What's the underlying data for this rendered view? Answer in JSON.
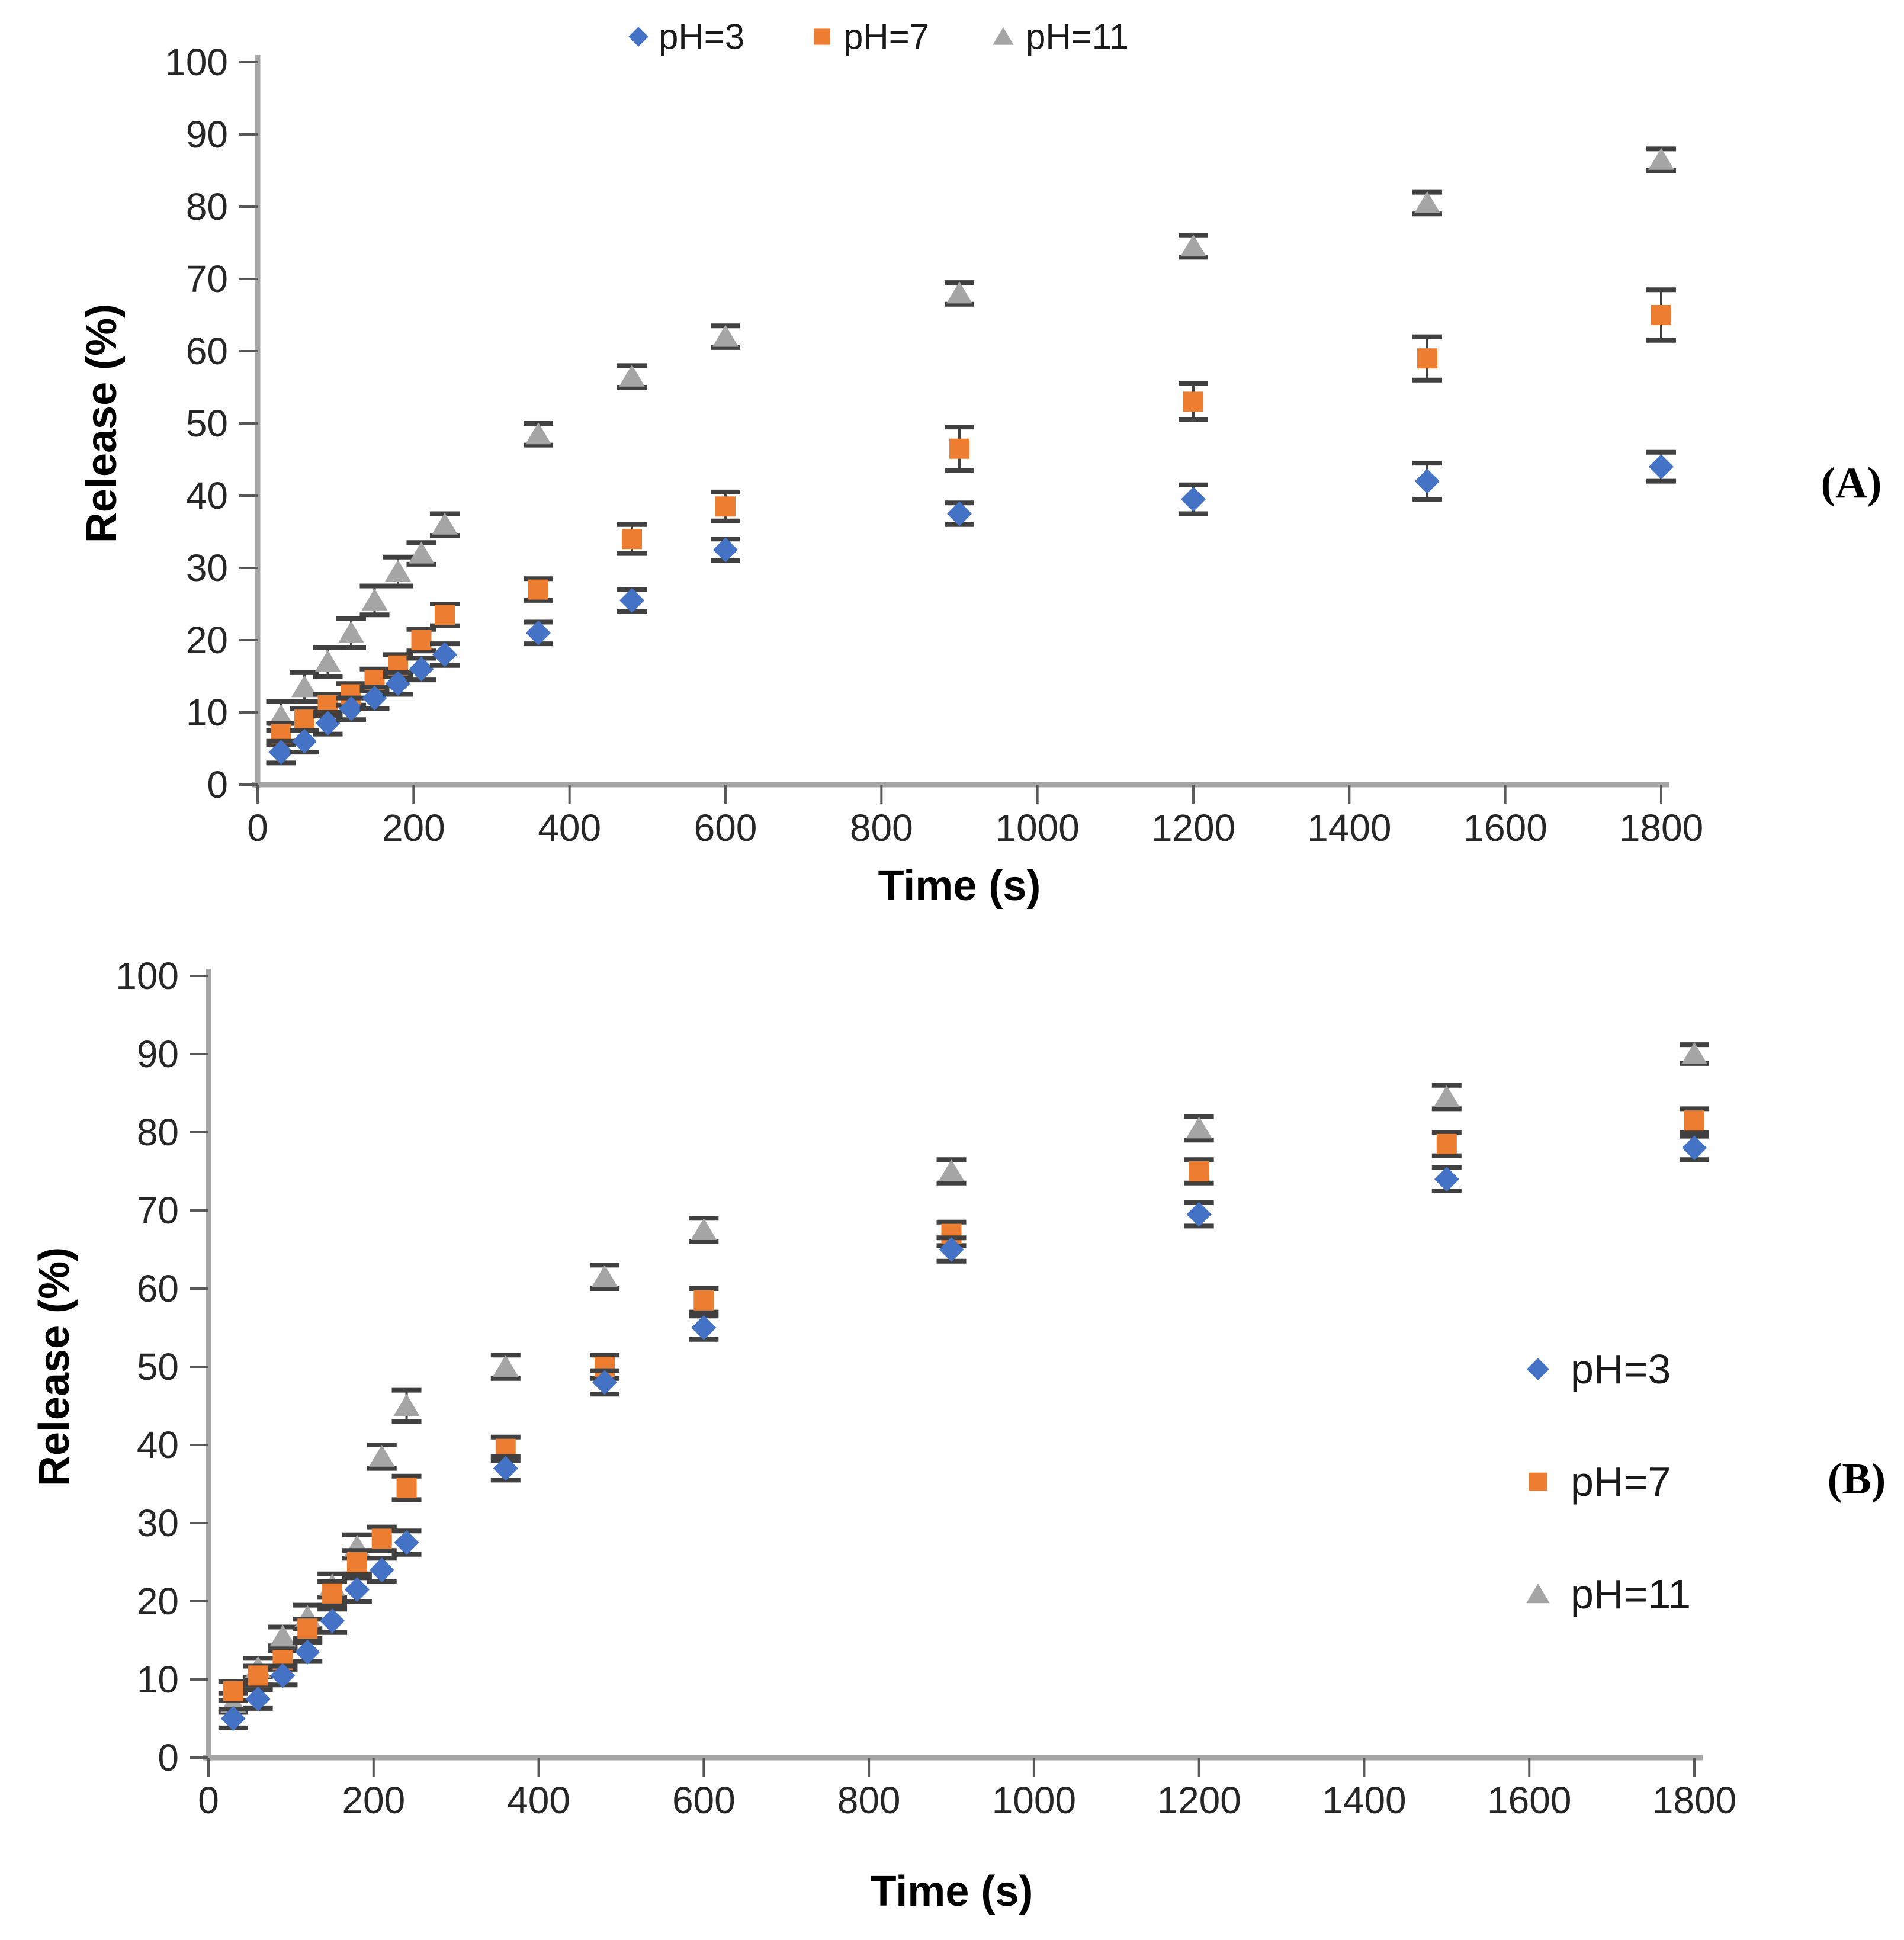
{
  "figure": {
    "background": "#ffffff",
    "axis_line_color": "#a6a6a6",
    "tick_mark_color": "#595959",
    "tick_label_color": "#262626",
    "error_bar_color": "#404040"
  },
  "chart_data": [
    {
      "panel": "A",
      "panel_label": "(A)",
      "type": "scatter",
      "title": "",
      "xlabel": "Time (s)",
      "ylabel": "Release (%)",
      "xlim": [
        0,
        1800
      ],
      "ylim": [
        0,
        100
      ],
      "xticks": [
        0,
        200,
        400,
        600,
        800,
        1000,
        1200,
        1400,
        1600,
        1800
      ],
      "yticks": [
        0,
        10,
        20,
        30,
        40,
        50,
        60,
        70,
        80,
        90,
        100
      ],
      "grid": false,
      "legend_position": "top-center-horizontal",
      "x": [
        30,
        60,
        90,
        120,
        150,
        180,
        210,
        240,
        360,
        480,
        600,
        900,
        1200,
        1500,
        1800
      ],
      "series": [
        {
          "name": "pH=3",
          "marker": "diamond",
          "color": "#4472C4",
          "values": [
            4.5,
            6,
            8.5,
            10.5,
            12,
            14,
            16,
            18,
            21,
            25.5,
            32.5,
            37.5,
            39.5,
            42,
            44
          ],
          "errors": [
            1.5,
            1.5,
            1.5,
            1.5,
            1.5,
            1.5,
            1.5,
            1.5,
            1.5,
            1.5,
            1.5,
            1.5,
            2,
            2.5,
            2
          ]
        },
        {
          "name": "pH=7",
          "marker": "square",
          "color": "#ED7D31",
          "values": [
            7,
            9,
            11,
            12.5,
            14.5,
            16.5,
            20,
            23.5,
            27,
            34,
            38.5,
            46.5,
            53,
            59,
            65
          ],
          "errors": [
            1.5,
            1.5,
            1.5,
            1.5,
            1.5,
            1.5,
            1.5,
            1.5,
            1.5,
            2,
            2,
            3,
            2.5,
            3,
            3.5
          ]
        },
        {
          "name": "pH=11",
          "marker": "triangle",
          "color": "#A5A5A5",
          "values": [
            9.5,
            13.5,
            17,
            21,
            25.5,
            29.5,
            32,
            36,
            48.5,
            56.5,
            62,
            68,
            74.5,
            80.5,
            86.5
          ],
          "errors": [
            2,
            2,
            2,
            2,
            2,
            2,
            1.5,
            1.5,
            1.5,
            1.5,
            1.5,
            1.5,
            1.5,
            1.5,
            1.5
          ]
        }
      ]
    },
    {
      "panel": "B",
      "panel_label": "(B)",
      "type": "scatter",
      "title": "",
      "xlabel": "Time (s)",
      "ylabel": "Release (%)",
      "xlim": [
        0,
        1800
      ],
      "ylim": [
        0,
        100
      ],
      "xticks": [
        0,
        200,
        400,
        600,
        800,
        1000,
        1200,
        1400,
        1600,
        1800
      ],
      "yticks": [
        0,
        10,
        20,
        30,
        40,
        50,
        60,
        70,
        80,
        90,
        100
      ],
      "grid": false,
      "legend_position": "inside-right-vertical",
      "x": [
        30,
        60,
        90,
        120,
        150,
        180,
        210,
        240,
        360,
        480,
        600,
        900,
        1200,
        1500,
        1800
      ],
      "series": [
        {
          "name": "pH=3",
          "marker": "diamond",
          "color": "#4472C4",
          "values": [
            5,
            7.5,
            10.5,
            13.5,
            17.5,
            21.5,
            24,
            27.5,
            37,
            48,
            55,
            65,
            69.5,
            74,
            78
          ],
          "errors": [
            1.2,
            1.2,
            1.2,
            1.2,
            1.5,
            1.5,
            1.5,
            1.5,
            1.5,
            1.5,
            1.5,
            1.5,
            1.5,
            1.5,
            1.5
          ]
        },
        {
          "name": "pH=7",
          "marker": "square",
          "color": "#ED7D31",
          "values": [
            8.5,
            10.5,
            12.5,
            16.5,
            21,
            25,
            28,
            34.5,
            39.5,
            50,
            58.5,
            67,
            75,
            78.5,
            81.5
          ],
          "errors": [
            1.2,
            1.2,
            1.2,
            1.2,
            1.5,
            1.5,
            1.5,
            1.5,
            1.5,
            1.5,
            1.5,
            1.5,
            1.5,
            1.5,
            1.5
          ]
        },
        {
          "name": "pH=11",
          "marker": "triangle",
          "color": "#A5A5A5",
          "values": [
            7,
            11.5,
            15.5,
            18,
            22,
            27,
            38.5,
            45,
            50,
            61.5,
            67.5,
            75,
            80.5,
            84.5,
            90
          ],
          "errors": [
            1.2,
            1.2,
            1.2,
            1.5,
            1.5,
            1.5,
            1.5,
            2,
            1.5,
            1.5,
            1.5,
            1.5,
            1.5,
            1.5,
            1.2
          ]
        }
      ]
    }
  ]
}
